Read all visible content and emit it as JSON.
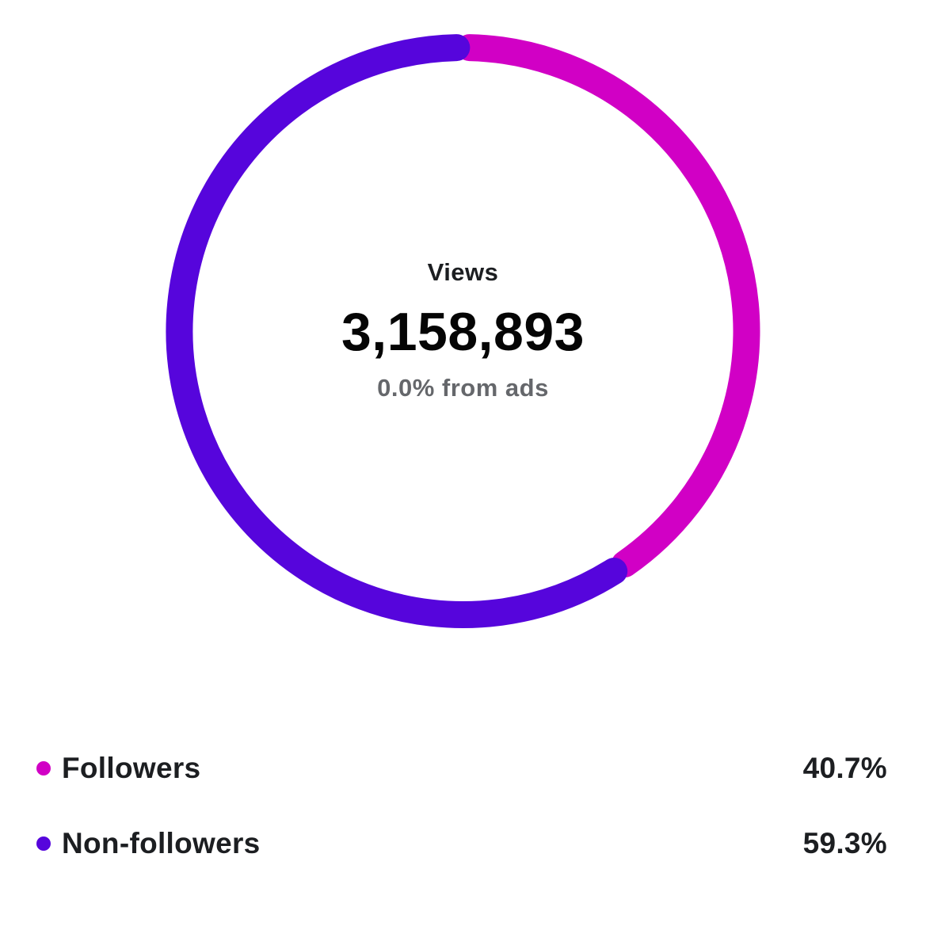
{
  "chart_data": {
    "type": "pie",
    "variant": "donut",
    "center": {
      "title": "Views",
      "value": "3,158,893",
      "subtitle": "0.0% from ads"
    },
    "series": [
      {
        "name": "Followers",
        "value": 40.7,
        "label": "40.7%",
        "color": "#d100c5"
      },
      {
        "name": "Non-followers",
        "value": 59.3,
        "label": "59.3%",
        "color": "#5605dc"
      }
    ],
    "legend_position": "bottom"
  }
}
